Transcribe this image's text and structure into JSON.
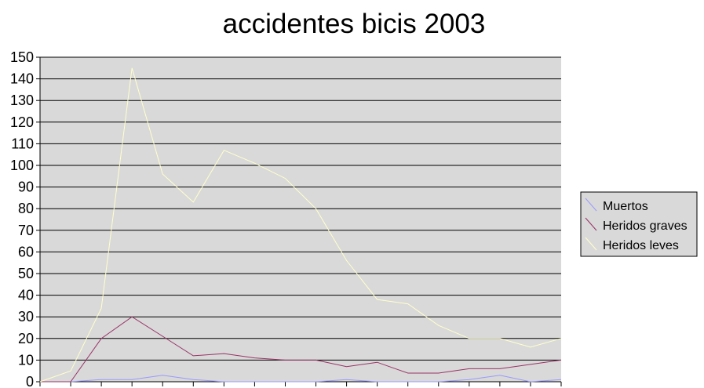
{
  "chart_data": {
    "type": "line",
    "title": "accidentes bicis 2003",
    "xlabel": "",
    "ylabel": "",
    "ylim": [
      0,
      150
    ],
    "yticks": [
      0,
      10,
      20,
      30,
      40,
      50,
      60,
      70,
      80,
      90,
      100,
      110,
      120,
      130,
      140,
      150
    ],
    "grid": true,
    "legend_position": "right",
    "plot_background": "#d9d9d9",
    "x": [
      1,
      2,
      3,
      4,
      5,
      6,
      7,
      8,
      9,
      10,
      11,
      12,
      13,
      14,
      15,
      16,
      17,
      18
    ],
    "series": [
      {
        "name": "Muertos",
        "color": "#9999ff",
        "values": [
          0,
          0,
          1,
          1,
          3,
          1,
          0,
          0,
          0,
          0,
          1,
          0,
          0,
          0,
          1,
          3,
          0,
          1
        ]
      },
      {
        "name": "Heridos graves",
        "color": "#993366",
        "values": [
          0,
          0,
          20,
          30,
          21,
          12,
          13,
          11,
          10,
          10,
          7,
          9,
          4,
          4,
          6,
          6,
          8,
          10
        ]
      },
      {
        "name": "Heridos leves",
        "color": "#ffffcc",
        "values": [
          0,
          5,
          34,
          145,
          96,
          83,
          107,
          101,
          94,
          80,
          56,
          38,
          36,
          26,
          20,
          20,
          16,
          20
        ]
      }
    ]
  }
}
